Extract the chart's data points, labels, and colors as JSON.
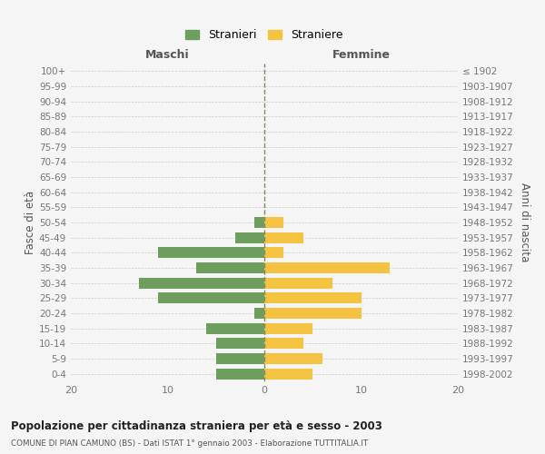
{
  "age_groups": [
    "0-4",
    "5-9",
    "10-14",
    "15-19",
    "20-24",
    "25-29",
    "30-34",
    "35-39",
    "40-44",
    "45-49",
    "50-54",
    "55-59",
    "60-64",
    "65-69",
    "70-74",
    "75-79",
    "80-84",
    "85-89",
    "90-94",
    "95-99",
    "100+"
  ],
  "birth_years": [
    "1998-2002",
    "1993-1997",
    "1988-1992",
    "1983-1987",
    "1978-1982",
    "1973-1977",
    "1968-1972",
    "1963-1967",
    "1958-1962",
    "1953-1957",
    "1948-1952",
    "1943-1947",
    "1938-1942",
    "1933-1937",
    "1928-1932",
    "1923-1927",
    "1918-1922",
    "1913-1917",
    "1908-1912",
    "1903-1907",
    "≤ 1902"
  ],
  "maschi": [
    5,
    5,
    5,
    6,
    1,
    11,
    13,
    7,
    11,
    3,
    1,
    0,
    0,
    0,
    0,
    0,
    0,
    0,
    0,
    0,
    0
  ],
  "femmine": [
    5,
    6,
    4,
    5,
    10,
    10,
    7,
    13,
    2,
    4,
    2,
    0,
    0,
    0,
    0,
    0,
    0,
    0,
    0,
    0,
    0
  ],
  "maschi_color": "#6e9e5e",
  "femmine_color": "#f5c342",
  "bg_color": "#f5f5f5",
  "grid_color": "#cccccc",
  "title": "Popolazione per cittadinanza straniera per età e sesso - 2003",
  "subtitle": "COMUNE DI PIAN CAMUNO (BS) - Dati ISTAT 1° gennaio 2003 - Elaborazione TUTTITALIA.IT",
  "ylabel_left": "Fasce di età",
  "ylabel_right": "Anni di nascita",
  "label_maschi": "Maschi",
  "label_femmine": "Femmine",
  "legend_stranieri": "Stranieri",
  "legend_straniere": "Straniere",
  "xlim": 20
}
